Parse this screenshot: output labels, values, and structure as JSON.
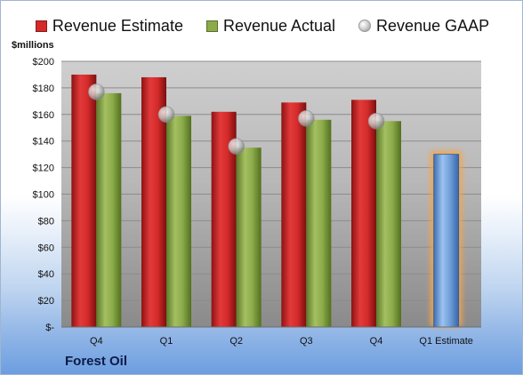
{
  "chart_data": {
    "type": "bar",
    "ylabel": "$millions",
    "company": "Forest Oil",
    "categories": [
      "Q4",
      "Q1",
      "Q2",
      "Q3",
      "Q4",
      "Q1 Estimate"
    ],
    "ylim": [
      0,
      200
    ],
    "yticks": [
      0,
      20,
      40,
      60,
      80,
      100,
      120,
      140,
      160,
      180,
      200
    ],
    "ytick_labels": [
      "$-",
      "$20",
      "$40",
      "$60",
      "$80",
      "$100",
      "$120",
      "$140",
      "$160",
      "$180",
      "$200"
    ],
    "grid": true,
    "legend_position": "top",
    "series": [
      {
        "name": "Revenue Estimate",
        "kind": "bar",
        "color": "#d42a2a",
        "values": [
          190,
          188,
          162,
          169,
          171,
          null
        ]
      },
      {
        "name": "Revenue Actual",
        "kind": "bar",
        "color": "#8cab4a",
        "values": [
          176,
          159,
          135,
          156,
          155,
          null
        ]
      },
      {
        "name": "Revenue GAAP",
        "kind": "marker",
        "color": "#bfbfbf",
        "values": [
          177,
          160,
          136,
          157,
          155,
          null
        ]
      },
      {
        "name": "Q1 Estimate",
        "kind": "bar",
        "color": "#6f9fdb",
        "highlight": "#f5a54a",
        "values": [
          null,
          null,
          null,
          null,
          null,
          130
        ]
      }
    ]
  }
}
